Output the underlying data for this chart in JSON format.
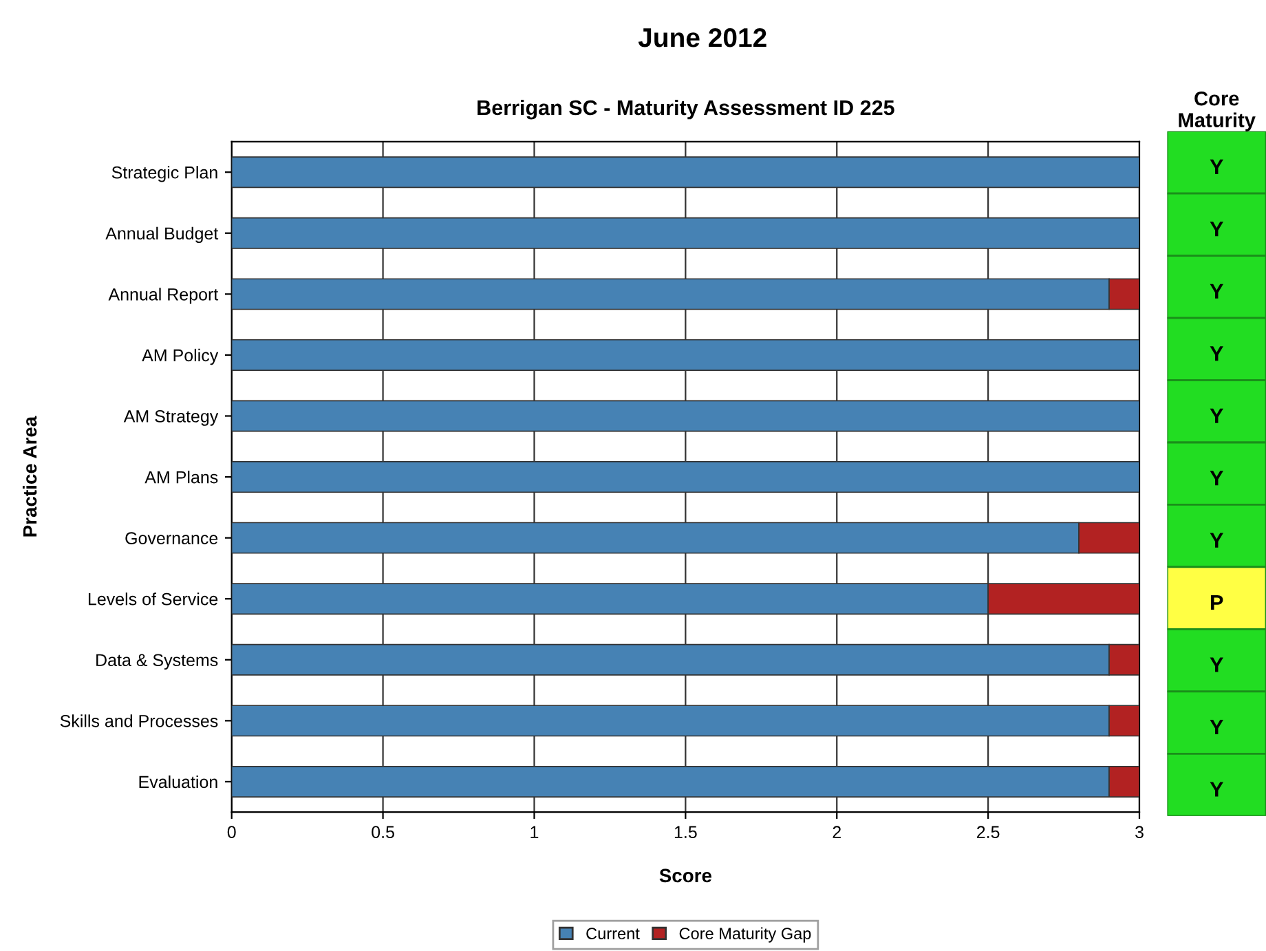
{
  "chart_data": [
    {
      "type": "bar",
      "orientation": "horizontal",
      "stacked": true,
      "title": "Berrigan SC - Maturity Assessment ID 225",
      "subtitle": "June 2012",
      "xlabel": "Score",
      "ylabel": "Practice Area",
      "categories": [
        "Strategic Plan",
        "Annual Budget",
        "Annual Report",
        "AM Policy",
        "AM Strategy",
        "AM Plans",
        "Governance",
        "Levels of Service",
        "Data & Systems",
        "Skills and Processes",
        "Evaluation"
      ],
      "series": [
        {
          "name": "Current",
          "color": "#4682b4",
          "values": [
            3,
            3,
            2.9,
            3,
            3,
            3,
            2.8,
            2.5,
            2.9,
            2.9,
            2.9
          ]
        },
        {
          "name": "Core Maturity Gap",
          "color": "#b22222",
          "values": [
            null,
            null,
            0.1,
            null,
            null,
            null,
            0.2,
            0.5,
            0.1,
            0.1,
            0.1
          ]
        }
      ],
      "xlim": [
        0,
        3
      ],
      "xticks": [
        0,
        0.5,
        1,
        1.5,
        2,
        2.5,
        3
      ],
      "grid": "x",
      "legend": "bottom"
    },
    {
      "type": "other",
      "title": "Core Maturity",
      "annotations": [
        "Y",
        "Y",
        "Y",
        "Y",
        "Y",
        "Y",
        "Y",
        "P",
        "Y",
        "Y",
        "Y"
      ],
      "colors": [
        "#22dd22",
        "#22dd22",
        "#22dd22",
        "#22dd22",
        "#22dd22",
        "#22dd22",
        "#22dd22",
        "#ffff44",
        "#22dd22",
        "#22dd22",
        "#22dd22"
      ]
    }
  ]
}
